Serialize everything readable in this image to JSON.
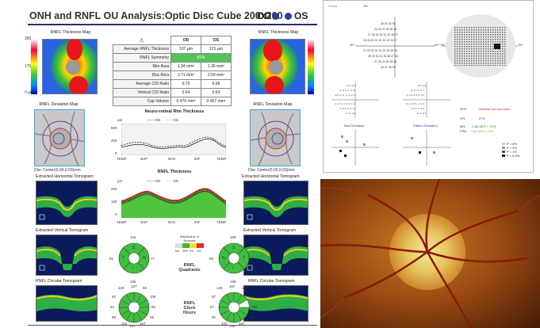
{
  "report": {
    "title": "ONH and RNFL OU Analysis:Optic Disc Cube 200x200",
    "od_label": "OD",
    "os_label": "OS",
    "od_color": "#2b3f9a",
    "os_color": "#2b3f9a"
  },
  "thickness_map": {
    "title_left": "RNFL Thickness Map",
    "title_right": "RNFL Thickness Map",
    "scale_top": "350",
    "scale_mid": "175",
    "scale_bottom": "0 µm"
  },
  "metrics": {
    "col_od": "OD",
    "col_os": "OS",
    "rows": [
      {
        "label": "Average RNFL Thickness",
        "od": "107 µm",
        "os": "121 µm"
      },
      {
        "label": "RNFL Symmetry",
        "od": "81%",
        "os": ""
      },
      {
        "label": "Rim Area",
        "od": "1.34 mm²",
        "os": "1.36 mm²"
      },
      {
        "label": "Disc Area",
        "od": "2.71 mm²",
        "os": "2.59 mm²"
      },
      {
        "label": "Average C/D Ratio",
        "od": "0.70",
        "os": "0.68"
      },
      {
        "label": "Vertical C/D Ratio",
        "od": "0.64",
        "os": "0.63"
      },
      {
        "label": "Cup Volume",
        "od": "0.470 mm³",
        "os": "0.467 mm³"
      }
    ]
  },
  "deviation": {
    "title_left": "RNFL Deviation Map",
    "title_right": "RNFL Deviation Map",
    "center_left": "Disc Center(0.00,0.03)mm",
    "center_right": "Disc Center(0.00,0.03)mm"
  },
  "rim_chart": {
    "title": "Neuro-retinal Rim Thickness",
    "unit": "µm",
    "legend_od": "OD",
    "legend_os": "OS",
    "y_ticks": [
      "800",
      "400",
      "0"
    ],
    "x_ticks": [
      "TEMP",
      "SUP",
      "NAS",
      "INF",
      "TEMP"
    ]
  },
  "rnfl_chart": {
    "title": "RNFL Thickness",
    "unit": "µm",
    "legend_od": "OD",
    "legend_os": "OS",
    "y_ticks": [
      "200",
      "100",
      "0"
    ],
    "x_ticks": [
      "TEMP",
      "SUP",
      "NAS",
      "INF",
      "TEMP"
    ]
  },
  "tomograms": {
    "horiz_left": "Extracted Horizontal Tomogram",
    "horiz_right": "Extracted Horizontal Tomogram",
    "vert_left": "Extracted Vertical Tomogram",
    "vert_right": "Extracted Vertical Tomogram",
    "circ_left": "RNFL Circular Tomogram",
    "circ_right": "RNFL Circular Tomogram"
  },
  "quadrants": {
    "label_line1": "RNFL",
    "label_line2": "Quadrants",
    "distribution_title": "Distribution of Normals",
    "dist_labels": [
      "NA",
      "95%",
      "5%",
      "1%"
    ],
    "od": {
      "S": "115",
      "T": "81",
      "N": "77",
      "I": "155",
      "letters": [
        "S",
        "T",
        "N",
        "I"
      ]
    },
    "os": {
      "S": "159",
      "T": "69",
      "N": "85",
      "I": "169",
      "letters": [
        "S",
        "N",
        "T",
        "I"
      ]
    }
  },
  "clock": {
    "label_line1": "RNFL",
    "label_line2": "Clock",
    "label_line3": "Hours",
    "od": [
      "126",
      "127",
      "93",
      "105",
      "66",
      "59",
      "89",
      "110",
      "187",
      "167",
      "92",
      "64"
    ],
    "os": [
      "146",
      "157",
      "174",
      "70",
      "103",
      "78",
      "87",
      "57",
      "82",
      "122",
      "199",
      "187"
    ]
  },
  "visual_field": {
    "header_left": "Fovea",
    "header_val": "Off",
    "axis_left": "-30°",
    "axis_right": "30°",
    "total_deviation": "Total Deviation",
    "pattern_deviation": "Pattern Deviation",
    "ght_label": "GHT:",
    "ght_value": "Outside Normal Limits",
    "vfi_label": "VFI:",
    "vfi_value": "97%",
    "md_label": "MD:",
    "md_value": "-1.88 dB P < 10%",
    "psd_label": "PSD:",
    "psd_value": "3.00 dB P < 2%",
    "legend": [
      "P < 5%",
      "P < 2%",
      "P < 1%",
      "P < 0.5%"
    ],
    "ght_color": "#cc2244",
    "md_color": "#2a7a2a"
  }
}
